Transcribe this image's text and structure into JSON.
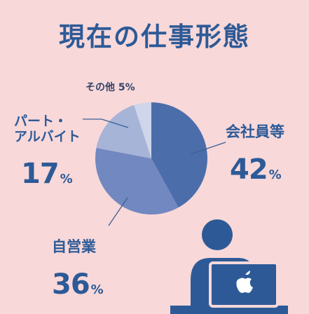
{
  "chart_data": {
    "type": "pie",
    "title": "現在の仕事形態",
    "categories": [
      "会社員等",
      "自営業",
      "パート・\nアルバイト",
      "その他"
    ],
    "values": [
      42,
      36,
      17,
      5
    ],
    "unit": "%",
    "colors": [
      "#4b6eab",
      "#7288c0",
      "#a6b4d7",
      "#cfd5ea"
    ]
  }
}
